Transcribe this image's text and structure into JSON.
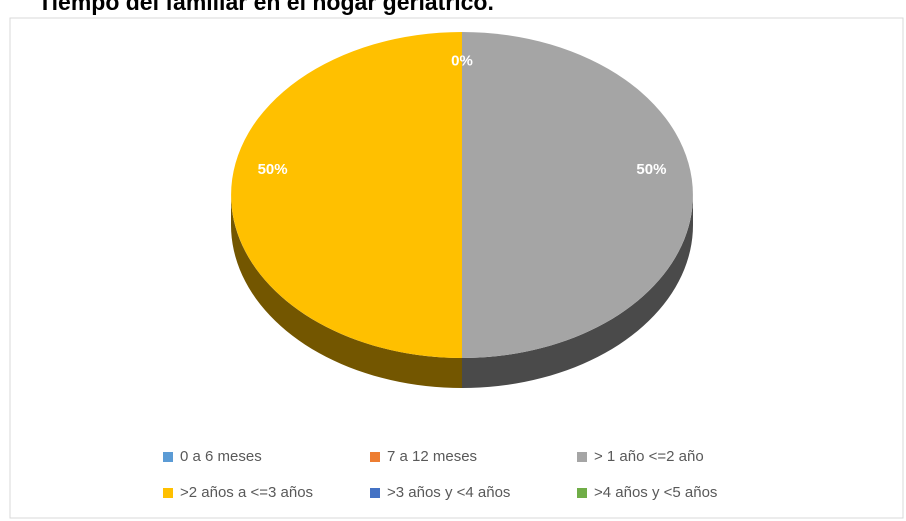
{
  "chart_data": {
    "type": "pie",
    "title": "Tiempo del familiar en el hogar geriátrico.",
    "categories": [
      "0 a 6 meses",
      "7 a 12 meses",
      "> 1 año <=2 año",
      ">2 años a <=3 años",
      ">3 años y <4 años",
      ">4 años y <5 años"
    ],
    "values": [
      0,
      0,
      50,
      50,
      0,
      0
    ],
    "value_labels": [
      "0%",
      null,
      "50%",
      "50%",
      null,
      null
    ],
    "colors": [
      "#5b9bd5",
      "#ed7d31",
      "#a5a5a5",
      "#ffc000",
      "#4472c4",
      "#70ad47"
    ],
    "legend": "bottom"
  }
}
